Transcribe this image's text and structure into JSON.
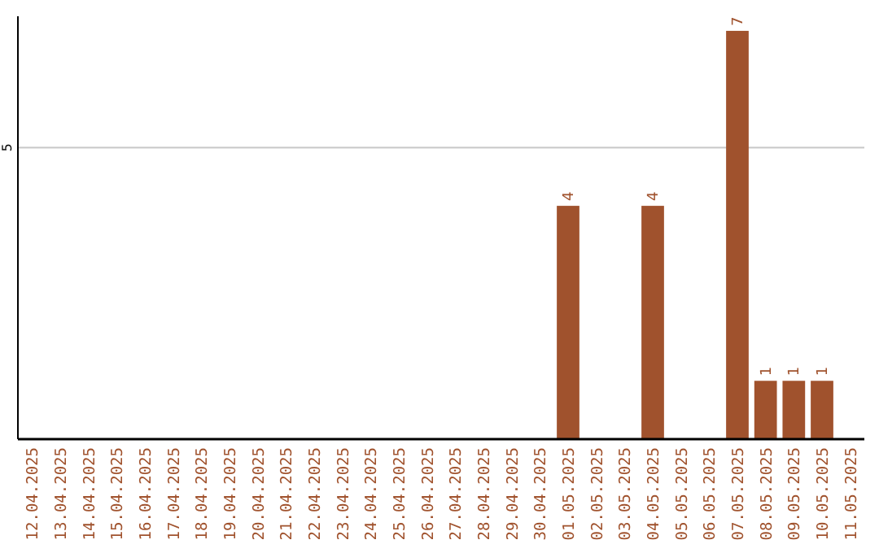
{
  "chart_data": {
    "type": "bar",
    "categories": [
      "12.04.2025",
      "13.04.2025",
      "14.04.2025",
      "15.04.2025",
      "16.04.2025",
      "17.04.2025",
      "18.04.2025",
      "19.04.2025",
      "20.04.2025",
      "21.04.2025",
      "22.04.2025",
      "23.04.2025",
      "24.04.2025",
      "25.04.2025",
      "26.04.2025",
      "27.04.2025",
      "28.04.2025",
      "29.04.2025",
      "30.04.2025",
      "01.05.2025",
      "02.05.2025",
      "03.05.2025",
      "04.05.2025",
      "05.05.2025",
      "06.05.2025",
      "07.05.2025",
      "08.05.2025",
      "09.05.2025",
      "10.05.2025",
      "11.05.2025"
    ],
    "values": [
      null,
      null,
      null,
      null,
      null,
      null,
      null,
      null,
      null,
      null,
      null,
      null,
      null,
      null,
      null,
      null,
      null,
      null,
      null,
      4,
      null,
      null,
      4,
      null,
      null,
      7,
      1,
      1,
      1,
      null
    ],
    "data_labels": true,
    "color": "#a0522d",
    "ylim": [
      0,
      7.25
    ],
    "yticks": [
      {
        "value": 0,
        "label": null
      },
      5
    ],
    "grid": "y"
  }
}
